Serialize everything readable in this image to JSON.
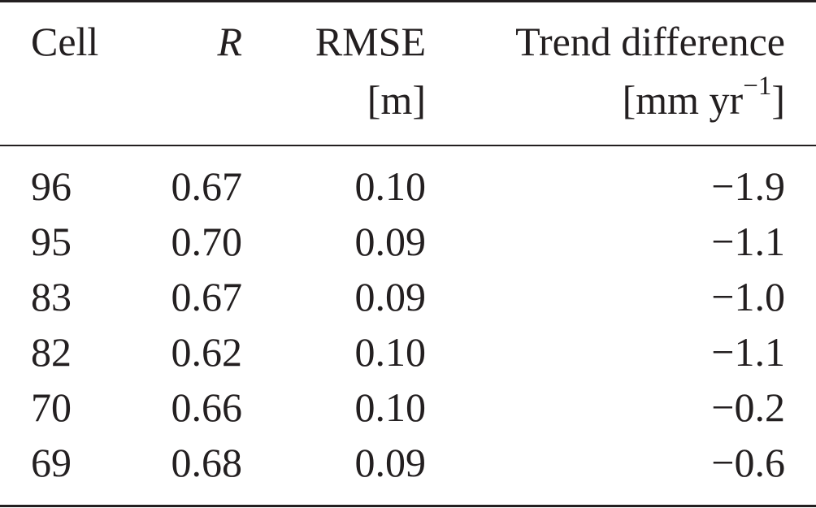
{
  "table": {
    "headers": {
      "cell": "Cell",
      "r": "R",
      "rmse": "RMSE",
      "rmse_unit": "[m]",
      "trend": "Trend difference",
      "trend_unit_prefix": "[mm yr",
      "trend_unit_exp": "−1",
      "trend_unit_suffix": "]"
    },
    "rows": [
      {
        "cell": "96",
        "r": "0.67",
        "rmse": "0.10",
        "trend": "−1.9"
      },
      {
        "cell": "95",
        "r": "0.70",
        "rmse": "0.09",
        "trend": "−1.1"
      },
      {
        "cell": "83",
        "r": "0.67",
        "rmse": "0.09",
        "trend": "−1.0"
      },
      {
        "cell": "82",
        "r": "0.62",
        "rmse": "0.10",
        "trend": "−1.1"
      },
      {
        "cell": "70",
        "r": "0.66",
        "rmse": "0.10",
        "trend": "−0.2"
      },
      {
        "cell": "69",
        "r": "0.68",
        "rmse": "0.09",
        "trend": "−0.6"
      }
    ]
  }
}
